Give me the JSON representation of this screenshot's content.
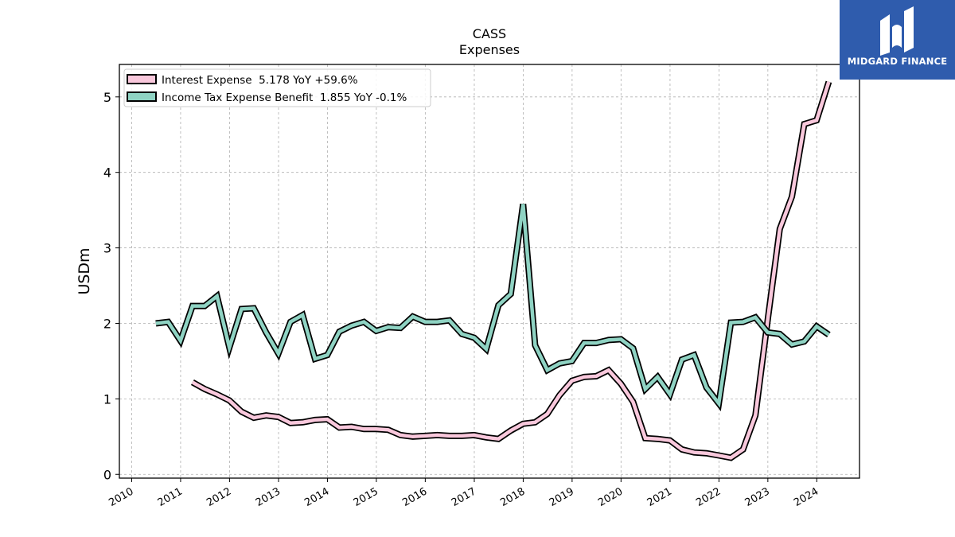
{
  "brand": {
    "name": "MIDGARD FINANCE",
    "bg_color": "#2f5cad"
  },
  "chart_data": {
    "type": "line",
    "title": "CASS",
    "subtitle": "Expenses",
    "ylabel": "USDm",
    "xlabel": "",
    "xlim": [
      "2009-10-01",
      "2024-11-15"
    ],
    "ylim": [
      -0.05,
      5.43
    ],
    "yticks": [
      0,
      1,
      2,
      3,
      4,
      5
    ],
    "xticks": [
      "2010",
      "2011",
      "2012",
      "2013",
      "2014",
      "2015",
      "2016",
      "2017",
      "2018",
      "2019",
      "2020",
      "2021",
      "2022",
      "2023",
      "2024"
    ],
    "grid": true,
    "legend_position": "top-left",
    "series": [
      {
        "name": "Interest Expense",
        "legend": "Interest Expense  5.178 YoY +59.6%",
        "color": "#f9c8dc",
        "points": [
          [
            "2011-03-31",
            1.22
          ],
          [
            "2011-06-30",
            1.13
          ],
          [
            "2011-09-30",
            1.06
          ],
          [
            "2011-12-31",
            0.98
          ],
          [
            "2012-03-31",
            0.83
          ],
          [
            "2012-06-30",
            0.75
          ],
          [
            "2012-09-30",
            0.78
          ],
          [
            "2012-12-31",
            0.76
          ],
          [
            "2013-03-31",
            0.68
          ],
          [
            "2013-06-30",
            0.69
          ],
          [
            "2013-09-30",
            0.72
          ],
          [
            "2013-12-31",
            0.73
          ],
          [
            "2014-03-31",
            0.62
          ],
          [
            "2014-06-30",
            0.63
          ],
          [
            "2014-09-30",
            0.6
          ],
          [
            "2014-12-31",
            0.6
          ],
          [
            "2015-03-31",
            0.59
          ],
          [
            "2015-06-30",
            0.52
          ],
          [
            "2015-09-30",
            0.5
          ],
          [
            "2015-12-31",
            0.51
          ],
          [
            "2016-03-31",
            0.52
          ],
          [
            "2016-06-30",
            0.51
          ],
          [
            "2016-09-30",
            0.51
          ],
          [
            "2016-12-31",
            0.52
          ],
          [
            "2017-03-31",
            0.49
          ],
          [
            "2017-06-30",
            0.47
          ],
          [
            "2017-09-30",
            0.58
          ],
          [
            "2017-12-31",
            0.67
          ],
          [
            "2018-03-31",
            0.69
          ],
          [
            "2018-06-30",
            0.8
          ],
          [
            "2018-09-30",
            1.05
          ],
          [
            "2018-12-31",
            1.24
          ],
          [
            "2019-03-31",
            1.29
          ],
          [
            "2019-06-30",
            1.3
          ],
          [
            "2019-09-30",
            1.38
          ],
          [
            "2019-12-31",
            1.2
          ],
          [
            "2020-03-31",
            0.96
          ],
          [
            "2020-06-30",
            0.48
          ],
          [
            "2020-09-30",
            0.47
          ],
          [
            "2020-12-31",
            0.45
          ],
          [
            "2021-03-31",
            0.33
          ],
          [
            "2021-06-30",
            0.29
          ],
          [
            "2021-09-30",
            0.28
          ],
          [
            "2021-12-31",
            0.25
          ],
          [
            "2022-03-31",
            0.22
          ],
          [
            "2022-06-30",
            0.33
          ],
          [
            "2022-09-30",
            0.78
          ],
          [
            "2022-12-31",
            2.05
          ],
          [
            "2023-03-31",
            3.25
          ],
          [
            "2023-06-30",
            3.68
          ],
          [
            "2023-09-30",
            4.64
          ],
          [
            "2023-12-31",
            4.69
          ],
          [
            "2024-03-31",
            5.2
          ]
        ]
      },
      {
        "name": "Income Tax Expense Benefit",
        "legend": "Income Tax Expense Benefit  1.855 YoY -0.1%",
        "color": "#8fd3c3",
        "points": [
          [
            "2010-06-30",
            2.0
          ],
          [
            "2010-09-30",
            2.02
          ],
          [
            "2010-12-31",
            1.77
          ],
          [
            "2011-03-31",
            2.23
          ],
          [
            "2011-06-30",
            2.23
          ],
          [
            "2011-09-30",
            2.36
          ],
          [
            "2011-12-31",
            1.68
          ],
          [
            "2012-03-31",
            2.19
          ],
          [
            "2012-06-30",
            2.2
          ],
          [
            "2012-09-30",
            1.88
          ],
          [
            "2012-12-31",
            1.6
          ],
          [
            "2013-03-31",
            2.02
          ],
          [
            "2013-06-30",
            2.11
          ],
          [
            "2013-09-30",
            1.53
          ],
          [
            "2013-12-31",
            1.58
          ],
          [
            "2014-03-31",
            1.89
          ],
          [
            "2014-06-30",
            1.97
          ],
          [
            "2014-09-30",
            2.02
          ],
          [
            "2014-12-31",
            1.9
          ],
          [
            "2015-03-31",
            1.95
          ],
          [
            "2015-06-30",
            1.94
          ],
          [
            "2015-09-30",
            2.09
          ],
          [
            "2015-12-31",
            2.02
          ],
          [
            "2016-03-31",
            2.02
          ],
          [
            "2016-06-30",
            2.04
          ],
          [
            "2016-09-30",
            1.86
          ],
          [
            "2016-12-31",
            1.81
          ],
          [
            "2017-03-31",
            1.66
          ],
          [
            "2017-06-30",
            2.24
          ],
          [
            "2017-09-30",
            2.39
          ],
          [
            "2017-12-31",
            3.58
          ],
          [
            "2018-03-31",
            1.71
          ],
          [
            "2018-06-30",
            1.38
          ],
          [
            "2018-09-30",
            1.47
          ],
          [
            "2018-12-31",
            1.5
          ],
          [
            "2019-03-31",
            1.74
          ],
          [
            "2019-06-30",
            1.74
          ],
          [
            "2019-09-30",
            1.78
          ],
          [
            "2019-12-31",
            1.79
          ],
          [
            "2020-03-31",
            1.67
          ],
          [
            "2020-06-30",
            1.13
          ],
          [
            "2020-09-30",
            1.29
          ],
          [
            "2020-12-31",
            1.06
          ],
          [
            "2021-03-31",
            1.52
          ],
          [
            "2021-06-30",
            1.58
          ],
          [
            "2021-09-30",
            1.15
          ],
          [
            "2021-12-31",
            0.94
          ],
          [
            "2022-03-31",
            2.01
          ],
          [
            "2022-06-30",
            2.02
          ],
          [
            "2022-09-30",
            2.08
          ],
          [
            "2022-12-31",
            1.88
          ],
          [
            "2023-03-31",
            1.86
          ],
          [
            "2023-06-30",
            1.72
          ],
          [
            "2023-09-30",
            1.76
          ],
          [
            "2023-12-31",
            1.96
          ],
          [
            "2024-03-31",
            1.85
          ]
        ]
      }
    ]
  }
}
